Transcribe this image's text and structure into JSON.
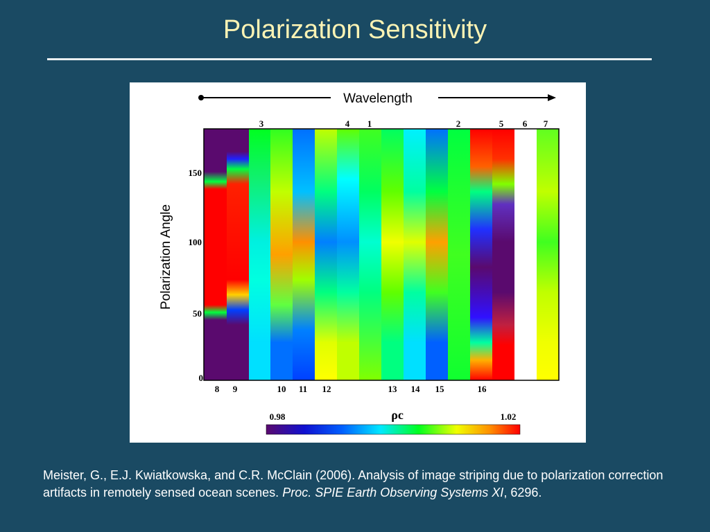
{
  "slide": {
    "title": "Polarization Sensitivity",
    "citation_part1": "Meister, G., E.J. Kwiatkowska, and C.R. McClain (2006). Analysis of image striping due to polarization correction artifacts in remotely sensed ocean scenes. ",
    "citation_journal": "Proc. SPIE Earth Observing Systems XI",
    "citation_part2": ", 6296."
  },
  "chart_data": {
    "type": "heatmap",
    "title": "",
    "xlabel": "Wavelength",
    "ylabel": "Polarization Angle",
    "ylim": [
      0,
      180
    ],
    "y_ticks": [
      "0",
      "50",
      "100",
      "150"
    ],
    "top_band_labels": [
      "3",
      "4",
      "1",
      "2",
      "5",
      "6",
      "7"
    ],
    "bottom_band_labels": [
      "8",
      "9",
      "10",
      "11",
      "12",
      "13",
      "14",
      "15",
      "16"
    ],
    "colorbar": {
      "label": "ρc",
      "min_label": "0.98",
      "max_label": "1.02",
      "range": [
        0.98,
        1.02
      ]
    },
    "colors": [
      "#5a0a6e",
      "#2a00c8",
      "#0060ff",
      "#00e0ff",
      "#00ff20",
      "#f0ff00",
      "#ff9000",
      "#ff0000"
    ]
  }
}
